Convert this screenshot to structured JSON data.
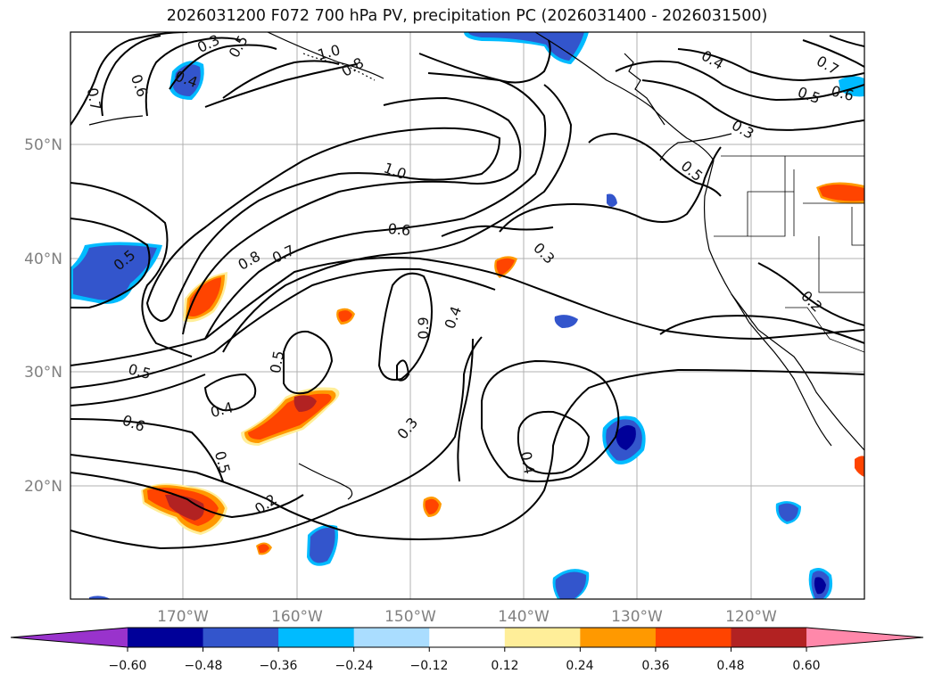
{
  "title": "2026031200 F072 700 hPa PV, precipitation PC (2026031400 - 2026031500)",
  "map": {
    "lat_labels": [
      "50°N",
      "40°N",
      "30°N",
      "20°N"
    ],
    "lon_labels": [
      "170°W",
      "160°W",
      "150°W",
      "140°W",
      "130°W",
      "120°W"
    ],
    "gridlines": true,
    "contour_color": "#000000"
  },
  "contour_labels": [
    "0.3",
    "0.5",
    "0.4",
    "0.6",
    "0.7",
    "1.0",
    "0.8",
    "0.4",
    "0.5",
    "0.6",
    "0.7",
    "0.3",
    "0.5",
    "1.0",
    "0.6",
    "0.8",
    "0.7",
    "0.5",
    "0.3",
    "0.9",
    "0.4",
    "0.2",
    "0.5",
    "0.4",
    "0.5",
    "0.6",
    "0.5",
    "0.2",
    "0.3",
    "0.4"
  ],
  "colorbar": {
    "ticks": [
      "−0.60",
      "−0.48",
      "−0.36",
      "−0.24",
      "−0.12",
      "0.12",
      "0.24",
      "0.36",
      "0.48",
      "0.60"
    ],
    "colors": [
      "#9933cc",
      "#000099",
      "#3355cc",
      "#00bbff",
      "#aaddff",
      "#ffffff",
      "#ffee99",
      "#ff9900",
      "#ff4400",
      "#b22222",
      "#ff88aa"
    ],
    "extend": "both"
  },
  "fill_colors": {
    "blue_light": "#00bbff",
    "blue_mid": "#3355cc",
    "blue_dark": "#000099",
    "orange": "#ff9900",
    "red_orange": "#ff4400",
    "dark_red": "#b22222",
    "yellow": "#ffee99"
  }
}
